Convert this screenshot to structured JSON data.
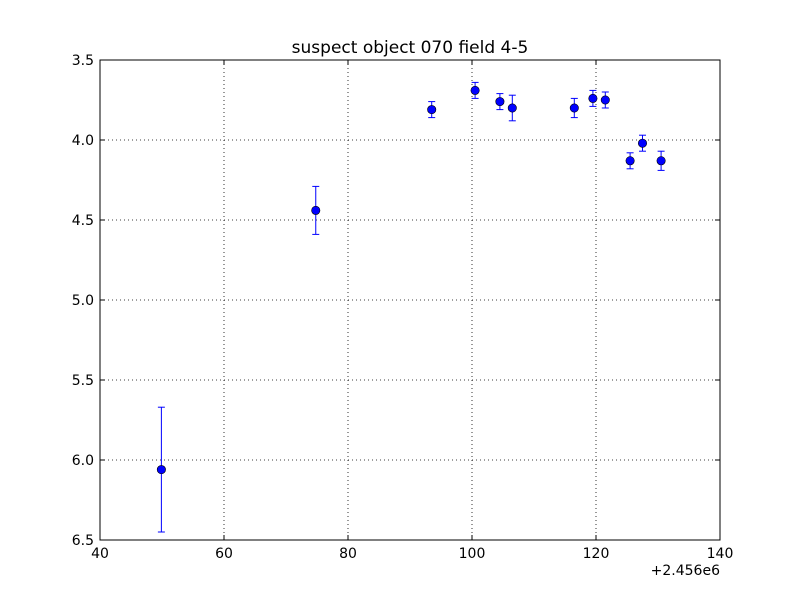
{
  "chart_data": {
    "type": "scatter",
    "title": "suspect object 070 field 4-5",
    "xlabel": "",
    "ylabel": "",
    "x_offset_label": "+2.456e6",
    "xlim": [
      40,
      140
    ],
    "ylim": [
      3.5,
      6.5
    ],
    "y_inverted": true,
    "x_ticks": [
      40,
      60,
      80,
      100,
      120,
      140
    ],
    "x_tick_labels": [
      "40",
      "60",
      "80",
      "100",
      "120",
      "140"
    ],
    "y_ticks": [
      3.5,
      4.0,
      4.5,
      5.0,
      5.5,
      6.0,
      6.5
    ],
    "y_tick_labels": [
      "3.5",
      "4.0",
      "4.5",
      "5.0",
      "5.5",
      "6.0",
      "6.5"
    ],
    "grid": true,
    "series": [
      {
        "color": "#0000ff",
        "marker": "circle",
        "error_bars": true,
        "points": [
          {
            "x": 49.9,
            "y": 6.06,
            "err": 0.39
          },
          {
            "x": 74.8,
            "y": 4.44,
            "err": 0.15
          },
          {
            "x": 93.5,
            "y": 3.81,
            "err": 0.05
          },
          {
            "x": 100.5,
            "y": 3.69,
            "err": 0.05
          },
          {
            "x": 104.5,
            "y": 3.76,
            "err": 0.05
          },
          {
            "x": 106.5,
            "y": 3.8,
            "err": 0.08
          },
          {
            "x": 116.5,
            "y": 3.8,
            "err": 0.06
          },
          {
            "x": 119.5,
            "y": 3.74,
            "err": 0.05
          },
          {
            "x": 121.5,
            "y": 3.75,
            "err": 0.05
          },
          {
            "x": 125.5,
            "y": 4.13,
            "err": 0.05
          },
          {
            "x": 127.5,
            "y": 4.02,
            "err": 0.05
          },
          {
            "x": 130.5,
            "y": 4.13,
            "err": 0.06
          }
        ]
      }
    ]
  }
}
